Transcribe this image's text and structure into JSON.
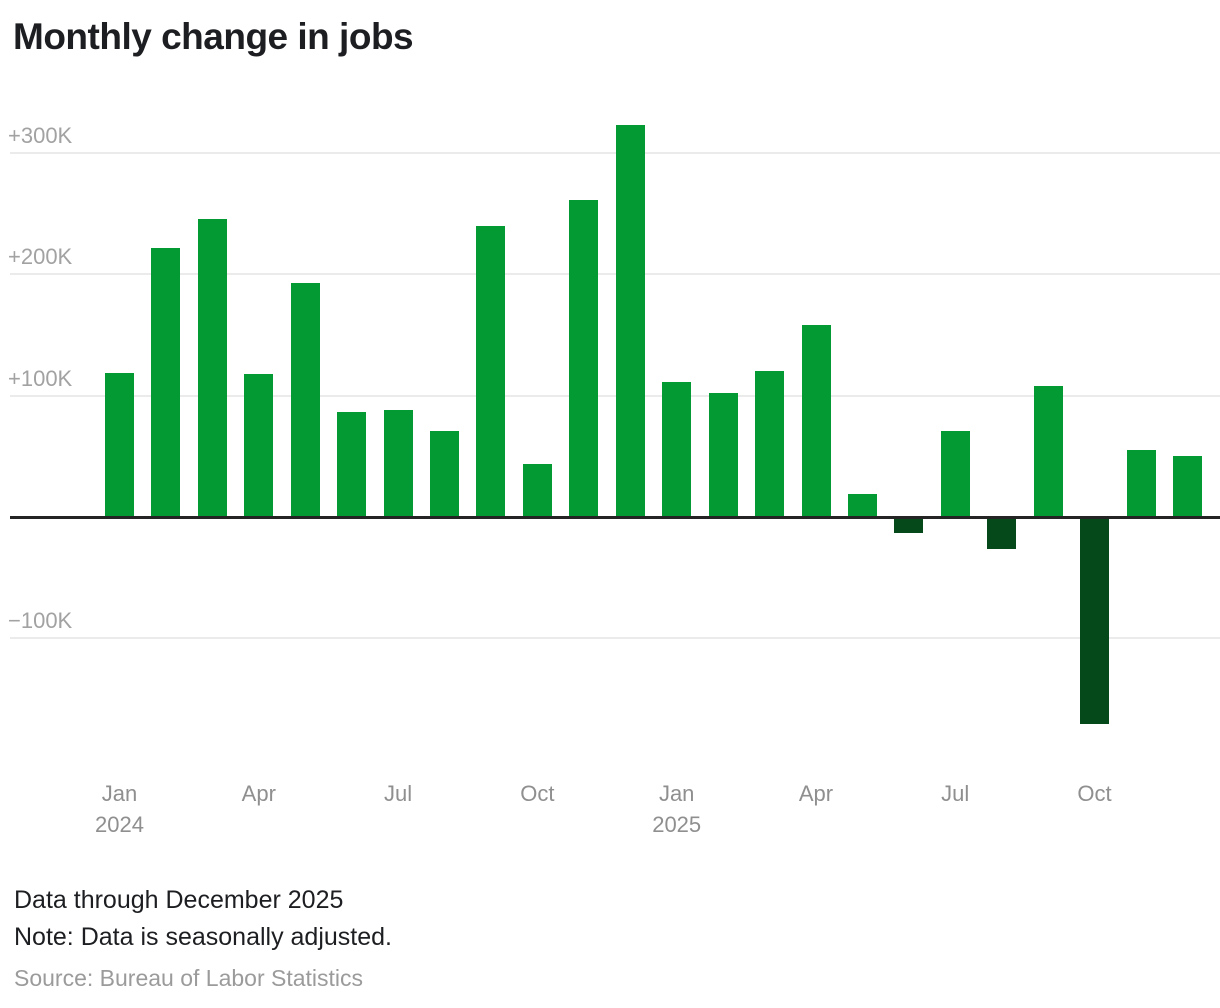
{
  "title": "Monthly change in jobs",
  "chart_data": {
    "type": "bar",
    "title": "Monthly change in jobs",
    "unit": "thousands of jobs (K)",
    "categories": [
      "Jan 2024",
      "Feb 2024",
      "Mar 2024",
      "Apr 2024",
      "May 2024",
      "Jun 2024",
      "Jul 2024",
      "Aug 2024",
      "Sep 2024",
      "Oct 2024",
      "Nov 2024",
      "Dec 2024",
      "Jan 2025",
      "Feb 2025",
      "Mar 2025",
      "Apr 2025",
      "May 2025",
      "Jun 2025",
      "Jul 2025",
      "Aug 2025",
      "Sep 2025",
      "Oct 2025",
      "Nov 2025",
      "Dec 2025"
    ],
    "values": [
      119,
      222,
      246,
      118,
      193,
      87,
      88,
      71,
      240,
      44,
      261,
      323,
      111,
      102,
      120,
      158,
      19,
      -13,
      71,
      -26,
      108,
      -171,
      55,
      50
    ],
    "ylim": [
      -200,
      340
    ],
    "grid": true,
    "legend": false,
    "colors": {
      "positive": "#049a33",
      "negative": "#05491a",
      "zero_line": "#242424",
      "gridline": "#ebebeb"
    },
    "y_ticks": [
      {
        "value": 300,
        "label": "+300K"
      },
      {
        "value": 200,
        "label": "+200K"
      },
      {
        "value": 100,
        "label": "+100K"
      },
      {
        "value": -100,
        "label": "−100K"
      }
    ],
    "x_ticks": [
      {
        "month_index": 0,
        "label": "Jan",
        "year": "2024"
      },
      {
        "month_index": 3,
        "label": "Apr",
        "year": ""
      },
      {
        "month_index": 6,
        "label": "Jul",
        "year": ""
      },
      {
        "month_index": 9,
        "label": "Oct",
        "year": ""
      },
      {
        "month_index": 12,
        "label": "Jan",
        "year": "2025"
      },
      {
        "month_index": 15,
        "label": "Apr",
        "year": ""
      },
      {
        "month_index": 18,
        "label": "Jul",
        "year": ""
      },
      {
        "month_index": 21,
        "label": "Oct",
        "year": ""
      }
    ]
  },
  "footer": {
    "line1": "Data through December 2025",
    "line2": "Note: Data is seasonally adjusted.",
    "source": "Source: Bureau of Labor Statistics"
  }
}
